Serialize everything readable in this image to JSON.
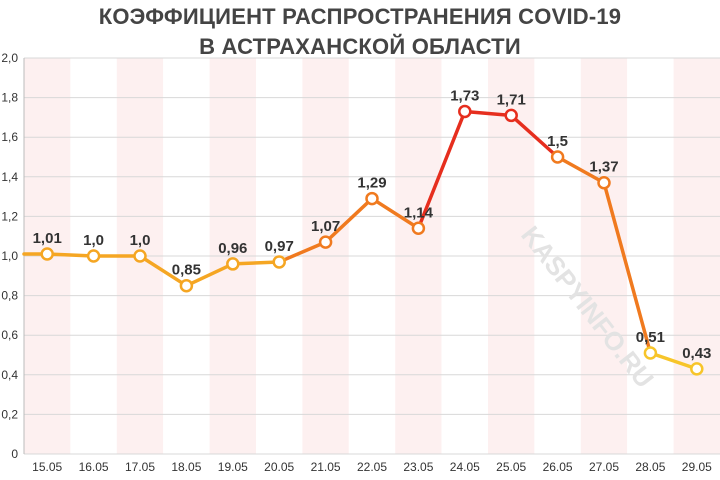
{
  "chart_data": {
    "type": "line",
    "title_lines": [
      "КОЭФФИЦИЕНТ РАСПРОСТРАНЕНИЯ COVID-19",
      "В АСТРАХАНСКОЙ ОБЛАСТИ"
    ],
    "categories": [
      "15.05",
      "16.05",
      "17.05",
      "18.05",
      "19.05",
      "20.05",
      "21.05",
      "22.05",
      "23.05",
      "24.05",
      "25.05",
      "26.05",
      "27.05",
      "28.05",
      "29.05"
    ],
    "values": [
      1.01,
      1.0,
      1.0,
      0.85,
      0.96,
      0.97,
      1.07,
      1.29,
      1.14,
      1.73,
      1.71,
      1.5,
      1.37,
      0.51,
      0.43
    ],
    "value_labels": [
      "1,01",
      "1,0",
      "1,0",
      "0,85",
      "0,96",
      "0,97",
      "1,07",
      "1,29",
      "1,14",
      "1,73",
      "1,71",
      "1,5",
      "1,37",
      "0,51",
      "0,43"
    ],
    "ylim": [
      0,
      2.0
    ],
    "yticks": [
      0,
      0.2,
      0.4,
      0.6,
      0.8,
      1.0,
      1.2,
      1.4,
      1.6,
      1.8,
      2.0
    ],
    "ytick_labels": [
      "0",
      "0,2",
      "0,4",
      "0,6",
      "0,8",
      "1,0",
      "1,2",
      "1,4",
      "1,6",
      "1,8",
      "2,0"
    ],
    "grid": true,
    "colors": {
      "low": "#f5a623",
      "mid": "#f07a1f",
      "high": "#e62e1e",
      "bottom": "#f7c52a",
      "band_light": "#fdf0f0",
      "band_white": "#ffffff",
      "grid": "#d8d8d8"
    }
  },
  "watermark": "KASPYINFO.RU"
}
